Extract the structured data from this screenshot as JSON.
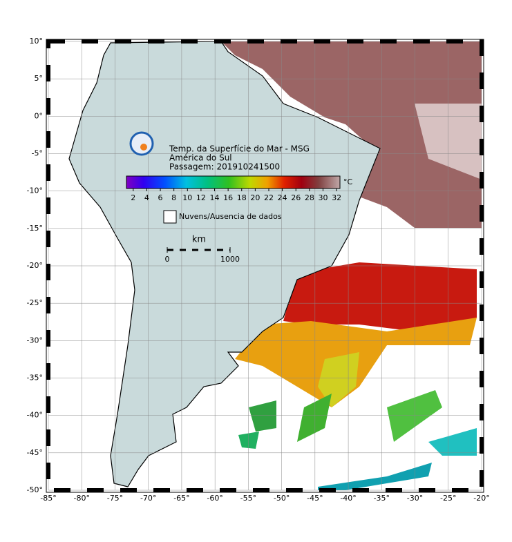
{
  "map": {
    "title": "Temp. da Superfície do Mar - MSG",
    "subtitle": "América do Sul",
    "pass": "Passagem: 201910241500",
    "lonlim": [
      -85,
      -20
    ],
    "latlim": [
      -50,
      10
    ],
    "lon_ticks": [
      {
        "value": -85,
        "label": "-85°"
      },
      {
        "value": -80,
        "label": "-80°"
      },
      {
        "value": -75,
        "label": "-75°"
      },
      {
        "value": -70,
        "label": "-70°"
      },
      {
        "value": -65,
        "label": "-65°"
      },
      {
        "value": -60,
        "label": "-60°"
      },
      {
        "value": -55,
        "label": "-55°"
      },
      {
        "value": -50,
        "label": "-50°"
      },
      {
        "value": -45,
        "label": "-45°"
      },
      {
        "value": -40,
        "label": "-40°"
      },
      {
        "value": -35,
        "label": "-35°"
      },
      {
        "value": -30,
        "label": "-30°"
      },
      {
        "value": -25,
        "label": "-25°"
      },
      {
        "value": -20,
        "label": "-20°"
      }
    ],
    "lat_ticks": [
      {
        "value": 10,
        "label": "10°"
      },
      {
        "value": 5,
        "label": "5°"
      },
      {
        "value": 0,
        "label": "0°"
      },
      {
        "value": -5,
        "label": "-5°"
      },
      {
        "value": -10,
        "label": "-10°"
      },
      {
        "value": -15,
        "label": "-15°"
      },
      {
        "value": -20,
        "label": "-20°"
      },
      {
        "value": -25,
        "label": "-25°"
      },
      {
        "value": -30,
        "label": "-30°"
      },
      {
        "value": -35,
        "label": "-35°"
      },
      {
        "value": -40,
        "label": "-40°"
      },
      {
        "value": -45,
        "label": "-45°"
      },
      {
        "value": -50,
        "label": "-50°"
      }
    ],
    "colorbar": {
      "lim": [
        1,
        32.5
      ],
      "ticks": [
        2,
        4,
        6,
        8,
        10,
        12,
        14,
        16,
        18,
        20,
        22,
        24,
        26,
        28,
        30,
        32
      ],
      "unit": "°C"
    },
    "no_data_label": "Nuvens/Ausencia de dados",
    "scale": {
      "unit": "km",
      "ticks": [
        0,
        1000
      ]
    }
  }
}
